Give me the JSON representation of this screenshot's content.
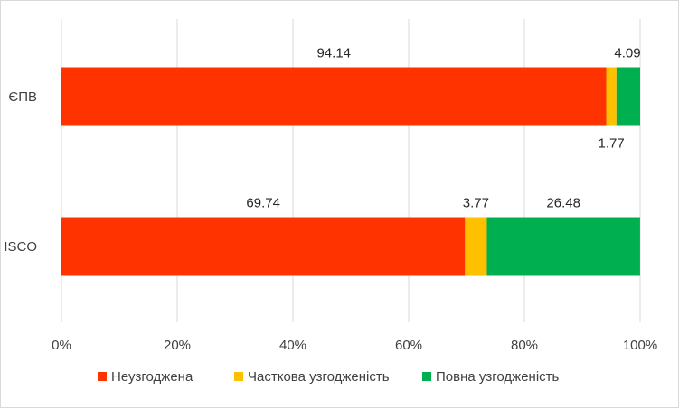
{
  "chart_data": {
    "type": "bar",
    "orientation": "horizontal",
    "stacked": "percent",
    "categories": [
      "ЄПВ",
      "ISCO"
    ],
    "series": [
      {
        "name": "Неузгоджена",
        "values": [
          94.14,
          69.74
        ],
        "color": "#ff3300"
      },
      {
        "name": "Часткова узгодженість",
        "values": [
          1.77,
          3.77
        ],
        "color": "#ffc000"
      },
      {
        "name": "Повна узгодженість",
        "values": [
          4.09,
          26.48
        ],
        "color": "#00b050"
      }
    ],
    "data_labels": [
      [
        "94.14",
        "69.74"
      ],
      [
        "1.77",
        "3.77"
      ],
      [
        "4.09",
        "26.48"
      ]
    ],
    "xlim": [
      0,
      100
    ],
    "x_ticks": [
      "0%",
      "20%",
      "40%",
      "60%",
      "80%",
      "100%"
    ],
    "grid": true,
    "legend_position": "bottom",
    "title": "",
    "xlabel": "",
    "ylabel": ""
  }
}
